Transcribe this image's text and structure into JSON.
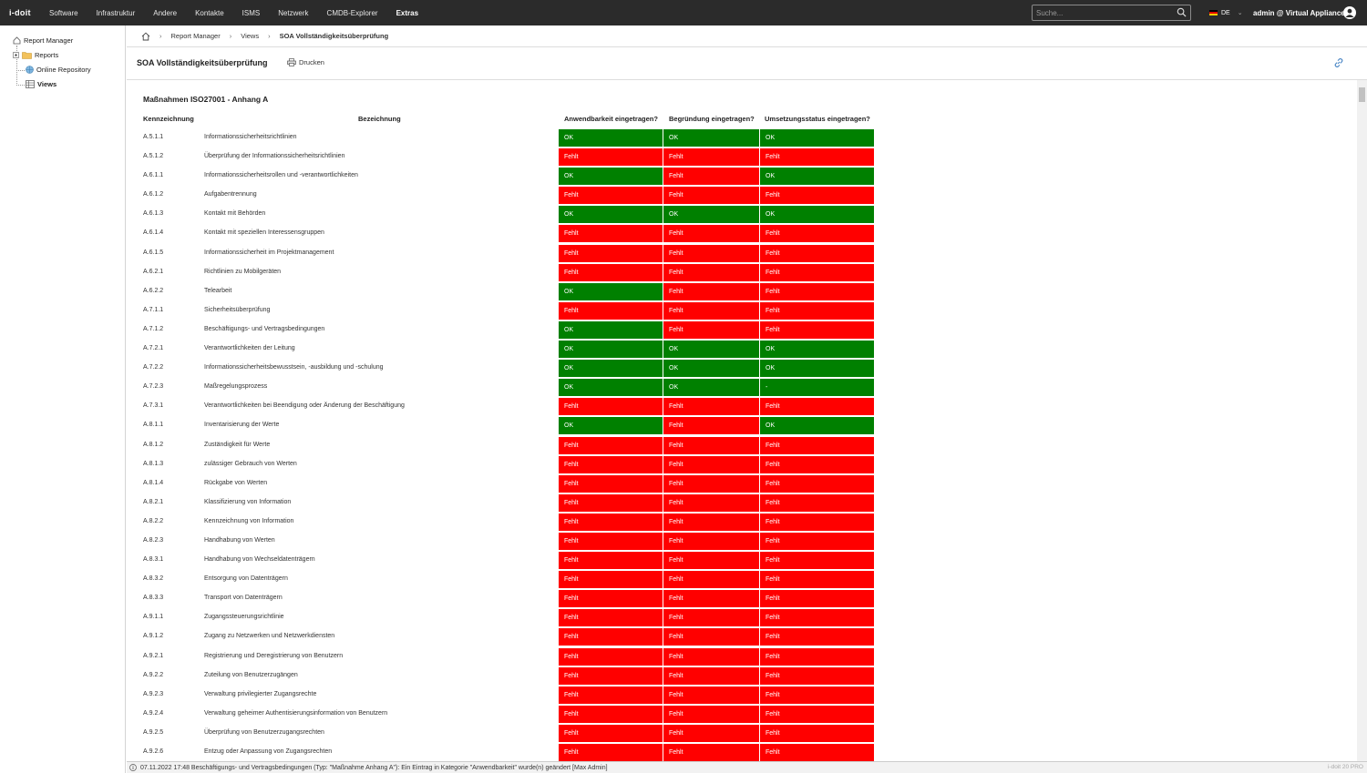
{
  "app": {
    "logo": "i-doit"
  },
  "nav": {
    "items": [
      {
        "label": "Software"
      },
      {
        "label": "Infrastruktur"
      },
      {
        "label": "Andere"
      },
      {
        "label": "Kontakte"
      },
      {
        "label": "ISMS"
      },
      {
        "label": "Netzwerk"
      },
      {
        "label": "CMDB-Explorer"
      },
      {
        "label": "Extras"
      }
    ],
    "active": "Extras"
  },
  "search": {
    "placeholder": "Suche..."
  },
  "lang": {
    "code": "DE"
  },
  "user": {
    "label": "admin @ Virtual Appliance"
  },
  "sidebar": {
    "root": "Report Manager",
    "items": [
      {
        "label": "Reports"
      },
      {
        "label": "Online Repository"
      },
      {
        "label": "Views"
      }
    ]
  },
  "breadcrumb": {
    "items": [
      "Report Manager",
      "Views",
      "SOA Vollständigkeitsüberprüfung"
    ]
  },
  "header": {
    "title": "SOA Vollständigkeitsüberprüfung",
    "print_label": "Drucken"
  },
  "report": {
    "section_title": "Maßnahmen ISO27001 - Anhang A",
    "columns": {
      "code": "Kennzeichnung",
      "desc": "Bezeichnung",
      "c1": "Anwendbarkeit eingetragen?",
      "c2": "Begründung eingetragen?",
      "c3": "Umsetzungsstatus eingetragen?"
    },
    "rows": [
      {
        "code": "A.5.1.1",
        "desc": "Informationssicherheitsrichtlinien",
        "c1": "OK",
        "c2": "OK",
        "c3": "OK"
      },
      {
        "code": "A.5.1.2",
        "desc": "Überprüfung der Informationssicherheitsrichtlinien",
        "c1": "Fehlt",
        "c2": "Fehlt",
        "c3": "Fehlt"
      },
      {
        "code": "A.6.1.1",
        "desc": "Informationssicherheitsrollen und -verantwortlichkeiten",
        "c1": "OK",
        "c2": "Fehlt",
        "c3": "OK"
      },
      {
        "code": "A.6.1.2",
        "desc": "Aufgabentrennung",
        "c1": "Fehlt",
        "c2": "Fehlt",
        "c3": "Fehlt"
      },
      {
        "code": "A.6.1.3",
        "desc": "Kontakt mit Behörden",
        "c1": "OK",
        "c2": "OK",
        "c3": "OK"
      },
      {
        "code": "A.6.1.4",
        "desc": "Kontakt mit speziellen Interessensgruppen",
        "c1": "Fehlt",
        "c2": "Fehlt",
        "c3": "Fehlt"
      },
      {
        "code": "A.6.1.5",
        "desc": "Informationssicherheit im Projektmanagement",
        "c1": "Fehlt",
        "c2": "Fehlt",
        "c3": "Fehlt"
      },
      {
        "code": "A.6.2.1",
        "desc": "Richtlinien zu Mobilgeräten",
        "c1": "Fehlt",
        "c2": "Fehlt",
        "c3": "Fehlt"
      },
      {
        "code": "A.6.2.2",
        "desc": "Telearbeit",
        "c1": "OK",
        "c2": "Fehlt",
        "c3": "Fehlt"
      },
      {
        "code": "A.7.1.1",
        "desc": "Sicherheitsüberprüfung",
        "c1": "Fehlt",
        "c2": "Fehlt",
        "c3": "Fehlt"
      },
      {
        "code": "A.7.1.2",
        "desc": "Beschäftigungs- und Vertragsbedingungen",
        "c1": "OK",
        "c2": "Fehlt",
        "c3": "Fehlt"
      },
      {
        "code": "A.7.2.1",
        "desc": "Verantwortlichkeiten der Leitung",
        "c1": "OK",
        "c2": "OK",
        "c3": "OK"
      },
      {
        "code": "A.7.2.2",
        "desc": "Informationssicherheitsbewusstsein, -ausbildung und -schulung",
        "c1": "OK",
        "c2": "OK",
        "c3": "OK"
      },
      {
        "code": "A.7.2.3",
        "desc": "Maßregelungsprozess",
        "c1": "OK",
        "c2": "OK",
        "c3": "-"
      },
      {
        "code": "A.7.3.1",
        "desc": "Verantwortlichkeiten bei Beendigung oder Änderung der Beschäftigung",
        "c1": "Fehlt",
        "c2": "Fehlt",
        "c3": "Fehlt"
      },
      {
        "code": "A.8.1.1",
        "desc": "Inventarisierung der Werte",
        "c1": "OK",
        "c2": "Fehlt",
        "c3": "OK"
      },
      {
        "code": "A.8.1.2",
        "desc": "Zuständigkeit für Werte",
        "c1": "Fehlt",
        "c2": "Fehlt",
        "c3": "Fehlt"
      },
      {
        "code": "A.8.1.3",
        "desc": "zulässiger Gebrauch von Werten",
        "c1": "Fehlt",
        "c2": "Fehlt",
        "c3": "Fehlt"
      },
      {
        "code": "A.8.1.4",
        "desc": "Rückgabe von Werten",
        "c1": "Fehlt",
        "c2": "Fehlt",
        "c3": "Fehlt"
      },
      {
        "code": "A.8.2.1",
        "desc": "Klassifizierung von Information",
        "c1": "Fehlt",
        "c2": "Fehlt",
        "c3": "Fehlt"
      },
      {
        "code": "A.8.2.2",
        "desc": "Kennzeichnung von Information",
        "c1": "Fehlt",
        "c2": "Fehlt",
        "c3": "Fehlt"
      },
      {
        "code": "A.8.2.3",
        "desc": "Handhabung von Werten",
        "c1": "Fehlt",
        "c2": "Fehlt",
        "c3": "Fehlt"
      },
      {
        "code": "A.8.3.1",
        "desc": "Handhabung von Wechseldatenträgern",
        "c1": "Fehlt",
        "c2": "Fehlt",
        "c3": "Fehlt"
      },
      {
        "code": "A.8.3.2",
        "desc": "Entsorgung von Datenträgern",
        "c1": "Fehlt",
        "c2": "Fehlt",
        "c3": "Fehlt"
      },
      {
        "code": "A.8.3.3",
        "desc": "Transport von Datenträgern",
        "c1": "Fehlt",
        "c2": "Fehlt",
        "c3": "Fehlt"
      },
      {
        "code": "A.9.1.1",
        "desc": "Zugangssteuerungsrichtlinie",
        "c1": "Fehlt",
        "c2": "Fehlt",
        "c3": "Fehlt"
      },
      {
        "code": "A.9.1.2",
        "desc": "Zugang zu Netzwerken und Netzwerkdiensten",
        "c1": "Fehlt",
        "c2": "Fehlt",
        "c3": "Fehlt"
      },
      {
        "code": "A.9.2.1",
        "desc": "Registrierung und Deregistrierung von Benutzern",
        "c1": "Fehlt",
        "c2": "Fehlt",
        "c3": "Fehlt"
      },
      {
        "code": "A.9.2.2",
        "desc": "Zuteilung von Benutzerzugängen",
        "c1": "Fehlt",
        "c2": "Fehlt",
        "c3": "Fehlt"
      },
      {
        "code": "A.9.2.3",
        "desc": "Verwaltung privilegierter Zugangsrechte",
        "c1": "Fehlt",
        "c2": "Fehlt",
        "c3": "Fehlt"
      },
      {
        "code": "A.9.2.4",
        "desc": "Verwaltung geheimer Authentisierungsinformation von Benutzern",
        "c1": "Fehlt",
        "c2": "Fehlt",
        "c3": "Fehlt"
      },
      {
        "code": "A.9.2.5",
        "desc": "Überprüfung von Benutzerzugangsrechten",
        "c1": "Fehlt",
        "c2": "Fehlt",
        "c3": "Fehlt"
      },
      {
        "code": "A.9.2.6",
        "desc": "Entzug oder Anpassung von Zugangsrechten",
        "c1": "Fehlt",
        "c2": "Fehlt",
        "c3": "Fehlt"
      }
    ]
  },
  "colors": {
    "ok": "#008000",
    "fehlt": "#ff0000",
    "topbar": "#2b2b2b"
  },
  "status": {
    "message": "07.11.2022 17:48 Beschäftigungs- und Vertragsbedingungen (Typ: \"Maßnahme Anhang A\"): Ein Eintrag in Kategorie \"Anwendbarkeit\" wurde(n) geändert [Max Admin]",
    "version": "i-doit 20 PRO"
  }
}
